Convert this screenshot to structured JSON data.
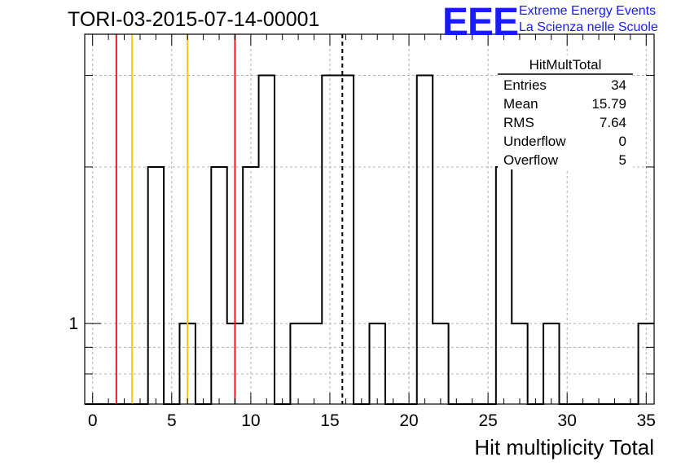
{
  "title": "TORI-03-2015-07-14-00001",
  "logo": {
    "mark": "EEE",
    "line1": "Extreme Energy Events",
    "line2": "La Scienza nelle Scuole",
    "color": "#1a1aff"
  },
  "stats": {
    "name": "HitMultTotal",
    "rows": [
      {
        "label": "Entries",
        "value": "34"
      },
      {
        "label": "Mean",
        "value": "15.79"
      },
      {
        "label": "RMS",
        "value": "7.64"
      },
      {
        "label": "Underflow",
        "value": "0"
      },
      {
        "label": "Overflow",
        "value": "5"
      }
    ]
  },
  "chart_data": {
    "type": "histogram",
    "xlabel": "Hit multiplicity Total",
    "ylabel": "",
    "xlim": [
      -0.5,
      35.5
    ],
    "ylim": [
      0.7,
      3.6
    ],
    "yscale": "log",
    "grid": true,
    "xticks": [
      "0",
      "5",
      "10",
      "15",
      "20",
      "25",
      "30",
      "35"
    ],
    "yticks": [
      "1"
    ],
    "bin_width": 1,
    "bins": [
      {
        "x": 0,
        "y": 0
      },
      {
        "x": 1,
        "y": 0
      },
      {
        "x": 2,
        "y": 0
      },
      {
        "x": 3,
        "y": 0
      },
      {
        "x": 4,
        "y": 2
      },
      {
        "x": 5,
        "y": 0
      },
      {
        "x": 6,
        "y": 1
      },
      {
        "x": 7,
        "y": 0
      },
      {
        "x": 8,
        "y": 2
      },
      {
        "x": 9,
        "y": 1
      },
      {
        "x": 10,
        "y": 2
      },
      {
        "x": 11,
        "y": 3
      },
      {
        "x": 12,
        "y": 0
      },
      {
        "x": 13,
        "y": 1
      },
      {
        "x": 14,
        "y": 1
      },
      {
        "x": 15,
        "y": 3
      },
      {
        "x": 16,
        "y": 3
      },
      {
        "x": 17,
        "y": 0
      },
      {
        "x": 18,
        "y": 1
      },
      {
        "x": 19,
        "y": 0
      },
      {
        "x": 20,
        "y": 0
      },
      {
        "x": 21,
        "y": 3
      },
      {
        "x": 22,
        "y": 1
      },
      {
        "x": 23,
        "y": 0
      },
      {
        "x": 24,
        "y": 0
      },
      {
        "x": 25,
        "y": 0
      },
      {
        "x": 26,
        "y": 2
      },
      {
        "x": 27,
        "y": 1
      },
      {
        "x": 28,
        "y": 0
      },
      {
        "x": 29,
        "y": 1
      },
      {
        "x": 30,
        "y": 0
      },
      {
        "x": 31,
        "y": 0
      },
      {
        "x": 32,
        "y": 0
      },
      {
        "x": 33,
        "y": 0
      },
      {
        "x": 34,
        "y": 0
      },
      {
        "x": 35,
        "y": 1
      }
    ],
    "reference_lines": [
      {
        "x": 1.5,
        "color": "#e8191b",
        "style": "solid"
      },
      {
        "x": 2.5,
        "color": "#f5c518",
        "style": "solid"
      },
      {
        "x": 6.0,
        "color": "#f5c518",
        "style": "solid"
      },
      {
        "x": 9.0,
        "color": "#e8191b",
        "style": "solid"
      },
      {
        "x": 15.79,
        "color": "#000000",
        "style": "dashed"
      }
    ]
  }
}
